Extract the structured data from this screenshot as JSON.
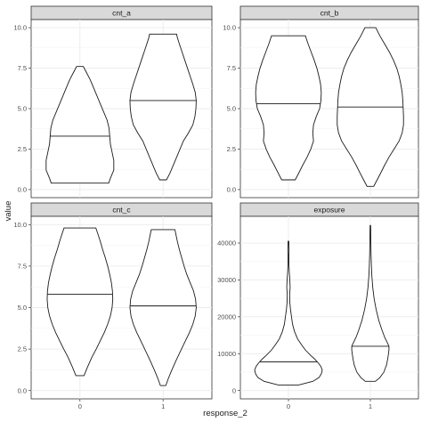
{
  "xlabel": "response_2",
  "ylabel": "value",
  "chart_data": [
    {
      "type": "violin",
      "facet": "cnt_a",
      "categories": [
        "0",
        "1"
      ],
      "ylim": [
        0,
        10
      ],
      "yticks": [
        0,
        2.5,
        5,
        7.5,
        10
      ],
      "ytick_labels": [
        "0.0",
        "2.5",
        "5.0",
        "7.5",
        "10.0"
      ],
      "series": [
        {
          "category": "0",
          "min": 0.4,
          "max": 7.6,
          "median": 3.3,
          "density": [
            [
              0.4,
              0.85
            ],
            [
              0.7,
              0.9
            ],
            [
              1.2,
              1.0
            ],
            [
              1.8,
              1.0
            ],
            [
              2.3,
              0.95
            ],
            [
              2.8,
              0.9
            ],
            [
              3.3,
              0.88
            ],
            [
              3.8,
              0.86
            ],
            [
              4.3,
              0.8
            ],
            [
              4.8,
              0.7
            ],
            [
              5.3,
              0.6
            ],
            [
              5.8,
              0.5
            ],
            [
              6.3,
              0.4
            ],
            [
              6.8,
              0.3
            ],
            [
              7.2,
              0.2
            ],
            [
              7.6,
              0.1
            ]
          ]
        },
        {
          "category": "1",
          "min": 0.6,
          "max": 9.6,
          "median": 5.5,
          "density": [
            [
              0.6,
              0.1
            ],
            [
              1.0,
              0.2
            ],
            [
              1.5,
              0.3
            ],
            [
              2.0,
              0.4
            ],
            [
              2.5,
              0.5
            ],
            [
              3.0,
              0.6
            ],
            [
              3.5,
              0.75
            ],
            [
              4.0,
              0.88
            ],
            [
              4.5,
              0.94
            ],
            [
              5.0,
              0.97
            ],
            [
              5.5,
              0.98
            ],
            [
              6.0,
              0.95
            ],
            [
              6.5,
              0.88
            ],
            [
              7.0,
              0.8
            ],
            [
              7.5,
              0.72
            ],
            [
              8.0,
              0.64
            ],
            [
              8.5,
              0.56
            ],
            [
              9.0,
              0.48
            ],
            [
              9.4,
              0.42
            ],
            [
              9.6,
              0.4
            ]
          ]
        }
      ]
    },
    {
      "type": "violin",
      "facet": "cnt_b",
      "categories": [
        "0",
        "1"
      ],
      "ylim": [
        0,
        10
      ],
      "yticks": [
        0,
        2.5,
        5,
        7.5,
        10
      ],
      "ytick_labels": [
        "0.0",
        "2.5",
        "5.0",
        "7.5",
        "10.0"
      ],
      "series": [
        {
          "category": "0",
          "min": 0.6,
          "max": 9.5,
          "median": 5.3,
          "density": [
            [
              0.6,
              0.2
            ],
            [
              1.0,
              0.3
            ],
            [
              1.5,
              0.42
            ],
            [
              2.0,
              0.55
            ],
            [
              2.5,
              0.66
            ],
            [
              3.0,
              0.74
            ],
            [
              3.5,
              0.72
            ],
            [
              4.0,
              0.74
            ],
            [
              4.5,
              0.82
            ],
            [
              5.0,
              0.92
            ],
            [
              5.5,
              0.96
            ],
            [
              6.0,
              0.97
            ],
            [
              6.5,
              0.95
            ],
            [
              7.0,
              0.9
            ],
            [
              7.5,
              0.84
            ],
            [
              8.0,
              0.76
            ],
            [
              8.5,
              0.67
            ],
            [
              9.0,
              0.58
            ],
            [
              9.5,
              0.5
            ]
          ]
        },
        {
          "category": "1",
          "min": 0.2,
          "max": 10.0,
          "median": 5.1,
          "density": [
            [
              0.2,
              0.1
            ],
            [
              0.6,
              0.2
            ],
            [
              1.0,
              0.3
            ],
            [
              1.5,
              0.42
            ],
            [
              2.0,
              0.55
            ],
            [
              2.5,
              0.7
            ],
            [
              3.0,
              0.85
            ],
            [
              3.5,
              0.94
            ],
            [
              4.0,
              0.98
            ],
            [
              4.5,
              0.98
            ],
            [
              5.0,
              0.97
            ],
            [
              5.5,
              0.96
            ],
            [
              6.0,
              0.94
            ],
            [
              6.5,
              0.9
            ],
            [
              7.0,
              0.85
            ],
            [
              7.5,
              0.78
            ],
            [
              8.0,
              0.68
            ],
            [
              8.5,
              0.56
            ],
            [
              9.0,
              0.42
            ],
            [
              9.5,
              0.28
            ],
            [
              10.0,
              0.16
            ]
          ]
        }
      ]
    },
    {
      "type": "violin",
      "facet": "cnt_c",
      "categories": [
        "0",
        "1"
      ],
      "ylim": [
        0,
        10
      ],
      "yticks": [
        0,
        2.5,
        5,
        7.5,
        10
      ],
      "ytick_labels": [
        "0.0",
        "2.5",
        "5.0",
        "7.5",
        "10.0"
      ],
      "series": [
        {
          "category": "0",
          "min": 0.9,
          "max": 9.8,
          "median": 5.8,
          "density": [
            [
              0.9,
              0.12
            ],
            [
              1.4,
              0.22
            ],
            [
              2.0,
              0.35
            ],
            [
              2.5,
              0.48
            ],
            [
              3.0,
              0.6
            ],
            [
              3.5,
              0.72
            ],
            [
              4.0,
              0.82
            ],
            [
              4.5,
              0.9
            ],
            [
              5.0,
              0.95
            ],
            [
              5.5,
              0.97
            ],
            [
              6.0,
              0.96
            ],
            [
              6.5,
              0.93
            ],
            [
              7.0,
              0.88
            ],
            [
              7.5,
              0.82
            ],
            [
              8.0,
              0.75
            ],
            [
              8.5,
              0.67
            ],
            [
              9.0,
              0.6
            ],
            [
              9.5,
              0.52
            ],
            [
              9.8,
              0.47
            ]
          ]
        },
        {
          "category": "1",
          "min": 0.3,
          "max": 9.7,
          "median": 5.1,
          "density": [
            [
              0.3,
              0.08
            ],
            [
              0.7,
              0.15
            ],
            [
              1.2,
              0.25
            ],
            [
              1.8,
              0.38
            ],
            [
              2.4,
              0.52
            ],
            [
              3.0,
              0.66
            ],
            [
              3.5,
              0.78
            ],
            [
              4.0,
              0.88
            ],
            [
              4.5,
              0.95
            ],
            [
              5.0,
              0.98
            ],
            [
              5.5,
              0.96
            ],
            [
              6.0,
              0.9
            ],
            [
              6.5,
              0.8
            ],
            [
              7.0,
              0.7
            ],
            [
              7.5,
              0.62
            ],
            [
              8.0,
              0.55
            ],
            [
              8.5,
              0.48
            ],
            [
              9.0,
              0.42
            ],
            [
              9.5,
              0.37
            ],
            [
              9.7,
              0.35
            ]
          ]
        }
      ]
    },
    {
      "type": "violin",
      "facet": "exposure",
      "categories": [
        "0",
        "1"
      ],
      "ylim": [
        0,
        45000
      ],
      "yticks": [
        0,
        10000,
        20000,
        30000,
        40000
      ],
      "ytick_labels": [
        "0",
        "10000",
        "20000",
        "30000",
        "40000"
      ],
      "series": [
        {
          "category": "0",
          "min": 1500,
          "max": 40500,
          "median": 7800,
          "density": [
            [
              1500,
              0.3
            ],
            [
              2500,
              0.72
            ],
            [
              3500,
              0.9
            ],
            [
              4500,
              0.97
            ],
            [
              5500,
              1.0
            ],
            [
              6500,
              0.96
            ],
            [
              7500,
              0.88
            ],
            [
              8500,
              0.78
            ],
            [
              9500,
              0.66
            ],
            [
              11000,
              0.5
            ],
            [
              12500,
              0.38
            ],
            [
              14000,
              0.27
            ],
            [
              16000,
              0.18
            ],
            [
              18000,
              0.12
            ],
            [
              20000,
              0.09
            ],
            [
              22000,
              0.06
            ],
            [
              24000,
              0.04
            ],
            [
              26000,
              0.035
            ],
            [
              28000,
              0.05
            ],
            [
              30000,
              0.04
            ],
            [
              32000,
              0.025
            ],
            [
              34000,
              0.015
            ],
            [
              36000,
              0.012
            ],
            [
              38000,
              0.018
            ],
            [
              40000,
              0.014
            ],
            [
              40500,
              0.01
            ]
          ]
        },
        {
          "category": "1",
          "min": 2500,
          "max": 44800,
          "median": 12000,
          "density": [
            [
              2500,
              0.15
            ],
            [
              3500,
              0.28
            ],
            [
              5000,
              0.4
            ],
            [
              7000,
              0.48
            ],
            [
              9000,
              0.52
            ],
            [
              11000,
              0.55
            ],
            [
              12000,
              0.55
            ],
            [
              13000,
              0.5
            ],
            [
              14500,
              0.42
            ],
            [
              16500,
              0.34
            ],
            [
              19000,
              0.25
            ],
            [
              22000,
              0.17
            ],
            [
              25000,
              0.11
            ],
            [
              28000,
              0.07
            ],
            [
              31000,
              0.045
            ],
            [
              34000,
              0.03
            ],
            [
              37000,
              0.02
            ],
            [
              40000,
              0.015
            ],
            [
              42000,
              0.012
            ],
            [
              44000,
              0.01
            ],
            [
              44800,
              0.008
            ]
          ]
        }
      ]
    }
  ]
}
